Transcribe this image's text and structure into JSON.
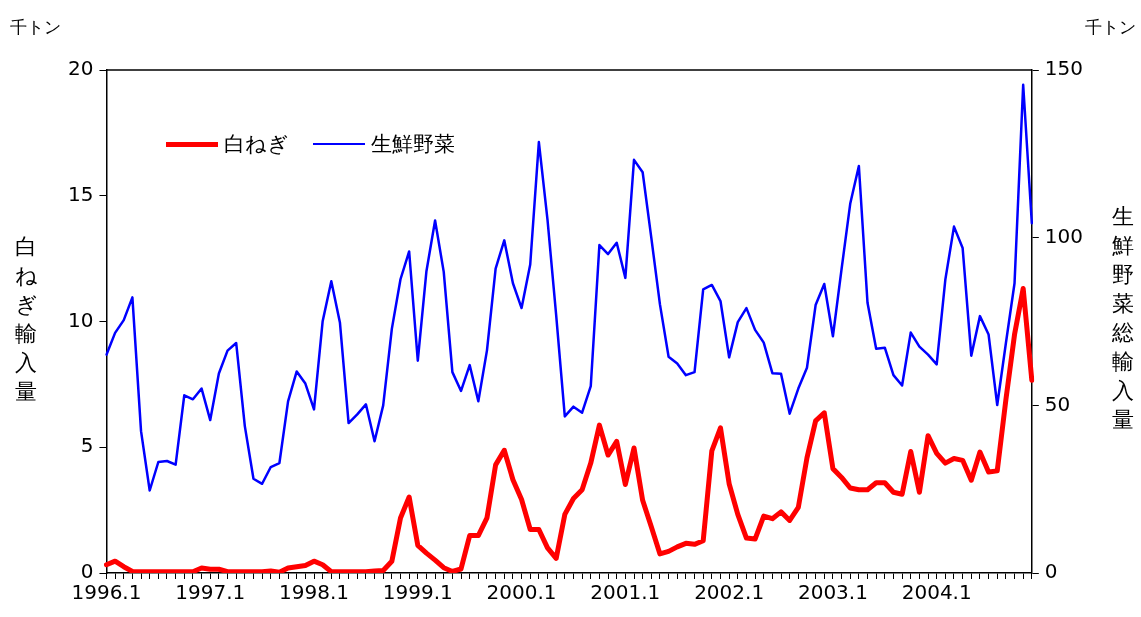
{
  "chart_data": {
    "type": "line",
    "ylabel": "白ねぎ輸入量",
    "y2label": "生鮮野菜総輸入量",
    "annotations": [
      "千トン",
      "千トン"
    ],
    "categories": [
      "1996.1",
      null,
      null,
      null,
      null,
      null,
      null,
      null,
      null,
      null,
      null,
      null,
      "1997.1",
      null,
      null,
      null,
      null,
      null,
      null,
      null,
      null,
      null,
      null,
      null,
      "1998.1",
      null,
      null,
      null,
      null,
      null,
      null,
      null,
      null,
      null,
      null,
      null,
      "1999.1",
      null,
      null,
      null,
      null,
      null,
      null,
      null,
      null,
      null,
      null,
      null,
      "2000.1",
      null,
      null,
      null,
      null,
      null,
      null,
      null,
      null,
      null,
      null,
      null,
      "2001.1",
      null,
      null,
      null,
      null,
      null,
      null,
      null,
      null,
      null,
      null,
      null,
      "2002.1",
      null,
      null,
      null,
      null,
      null,
      null,
      null,
      null,
      null,
      null,
      null,
      "2003.1",
      null,
      null,
      null,
      null,
      null,
      null,
      null,
      null,
      null,
      null,
      null,
      "2004.1",
      null,
      null,
      null,
      null,
      null,
      null,
      null,
      null,
      null,
      null,
      null
    ],
    "series": [
      {
        "name": "白ねぎ",
        "color": "#ff0000",
        "values": [
          0.33,
          0.47,
          0.25,
          0.06,
          0.05,
          0.05,
          0.05,
          0.05,
          0.05,
          0.05,
          0.05,
          0.2,
          0.15,
          0.15,
          0.05,
          0.05,
          0.05,
          0.05,
          0.05,
          0.08,
          0.03,
          0.2,
          0.25,
          0.3,
          0.47,
          0.33,
          0.05,
          0.05,
          0.05,
          0.05,
          0.05,
          0.08,
          0.1,
          0.47,
          2.19,
          3.02,
          1.1,
          0.79,
          0.51,
          0.21,
          0.06,
          0.16,
          1.49,
          1.49,
          2.19,
          4.3,
          4.88,
          3.71,
          2.92,
          1.73,
          1.73,
          1.0,
          0.58,
          2.33,
          2.96,
          3.31,
          4.37,
          5.88,
          4.69,
          5.23,
          3.52,
          4.97,
          2.89,
          1.84,
          0.76,
          0.86,
          1.04,
          1.18,
          1.14,
          1.28,
          4.86,
          5.77,
          3.55,
          2.33,
          1.39,
          1.35,
          2.26,
          2.16,
          2.43,
          2.09,
          2.61,
          4.58,
          6.05,
          6.37,
          4.15,
          3.8,
          3.38,
          3.31,
          3.31,
          3.59,
          3.59,
          3.21,
          3.13,
          4.83,
          3.21,
          5.46,
          4.76,
          4.37,
          4.55,
          4.48,
          3.69,
          4.81,
          4.02,
          4.06,
          6.89,
          9.48,
          11.31,
          7.66
        ]
      },
      {
        "name": "生鮮野菜",
        "color": "#0000ff",
        "axis": "y2",
        "values": [
          65.1,
          71.6,
          75.4,
          82.2,
          42.3,
          24.6,
          33.1,
          33.4,
          32.3,
          53,
          51.8,
          55,
          45.6,
          59.5,
          66.3,
          68.6,
          43.8,
          28.1,
          26.6,
          31.6,
          32.8,
          51.2,
          60.1,
          56.5,
          48.8,
          75.1,
          87,
          74.6,
          44.7,
          47.3,
          50.3,
          39.3,
          50,
          72.8,
          87.6,
          95.9,
          63.3,
          90,
          105.1,
          89.8,
          59.9,
          54.3,
          62,
          51.2,
          66.4,
          90.8,
          99.2,
          86.4,
          79,
          92,
          128.5,
          105.3,
          76.9,
          46.7,
          49.6,
          47.8,
          55.7,
          97.8,
          95.1,
          98.5,
          88,
          123.2,
          119.5,
          100,
          80.1,
          64.5,
          62.5,
          59,
          59.9,
          84.6,
          85.9,
          81.1,
          64.3,
          74.8,
          79,
          72.5,
          68.7,
          59.6,
          59.4,
          47.5,
          55,
          61.2,
          79.9,
          86.2,
          70.6,
          90.6,
          110.1,
          121.4,
          80.6,
          66.9,
          67.2,
          59,
          55.9,
          71.7,
          67.5,
          65.1,
          62.2,
          87.5,
          103.3,
          96.9,
          64.8,
          76.6,
          71.1,
          50.1,
          68.5,
          86.4,
          145.6,
          104.3
        ]
      }
    ],
    "ylim": [
      0,
      20
    ],
    "yticks": [
      0,
      5,
      10,
      15,
      20
    ],
    "y2lim": [
      0,
      150
    ],
    "y2ticks": [
      0,
      50,
      100,
      150
    ],
    "grid": false,
    "legend": "top left",
    "marker": "none",
    "line_style": "solid"
  }
}
